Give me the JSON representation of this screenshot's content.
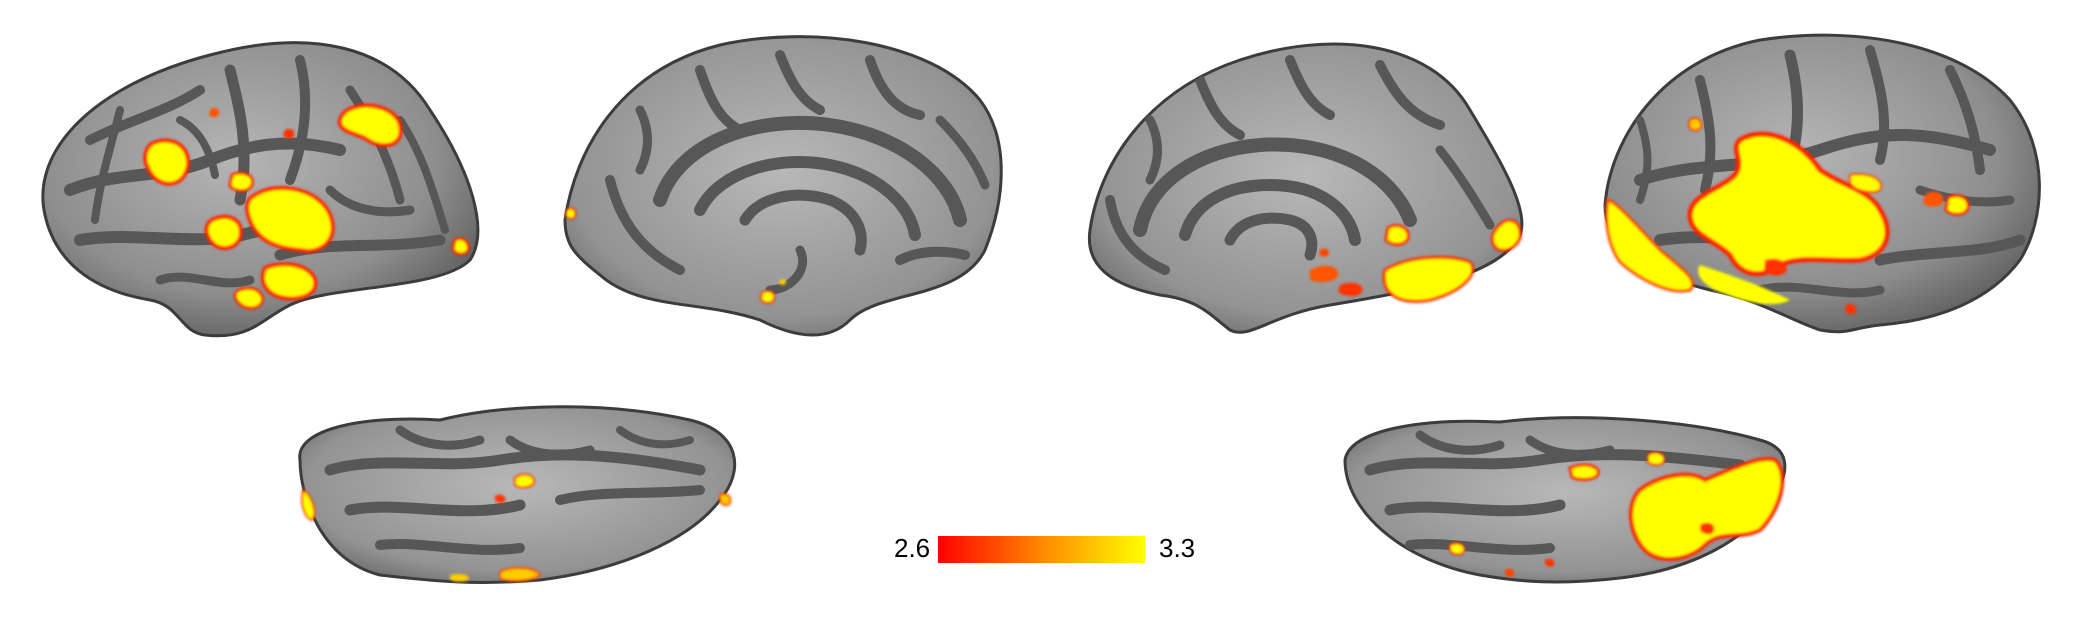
{
  "colorbar": {
    "min_label": "2.6",
    "max_label": "3.3",
    "min_value": 2.6,
    "max_value": 3.3,
    "color_low": "#ff0000",
    "color_high": "#ffff00"
  },
  "surface_colors": {
    "gyri": "#a3a3a3",
    "sulci": "#5a5a5a",
    "activation_core": "#ffff00",
    "activation_edge": "#ff2200"
  },
  "views": [
    {
      "name": "left-lateral"
    },
    {
      "name": "left-medial"
    },
    {
      "name": "right-medial"
    },
    {
      "name": "right-lateral"
    },
    {
      "name": "left-ventral"
    },
    {
      "name": "right-ventral"
    }
  ]
}
